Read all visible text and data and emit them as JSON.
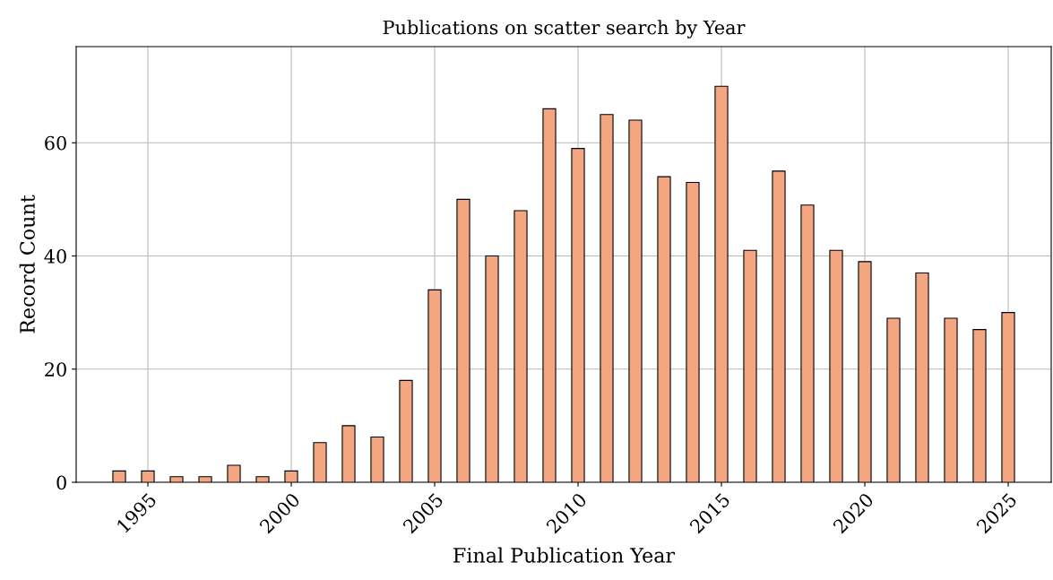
{
  "chart_data": {
    "type": "bar",
    "title": "Publications on scatter search by Year",
    "xlabel": "Final Publication Year",
    "ylabel": "Record Count",
    "x": [
      1994,
      1995,
      1996,
      1997,
      1998,
      1999,
      2000,
      2001,
      2002,
      2003,
      2004,
      2005,
      2006,
      2007,
      2008,
      2009,
      2010,
      2011,
      2012,
      2013,
      2014,
      2015,
      2016,
      2017,
      2018,
      2019,
      2020,
      2021,
      2022,
      2023,
      2024,
      2025
    ],
    "values": [
      2,
      2,
      1,
      1,
      3,
      1,
      2,
      7,
      10,
      8,
      18,
      34,
      50,
      40,
      48,
      66,
      59,
      65,
      64,
      54,
      53,
      70,
      41,
      55,
      49,
      41,
      39,
      29,
      37,
      29,
      27,
      30
    ],
    "color": "#f4a582",
    "xlim": [
      1992.5,
      2026.5
    ],
    "xticks": [
      1995,
      2000,
      2005,
      2010,
      2015,
      2020,
      2025
    ],
    "ylim": [
      0,
      77
    ],
    "yticks": [
      0,
      20,
      40,
      60
    ],
    "grid": true
  }
}
